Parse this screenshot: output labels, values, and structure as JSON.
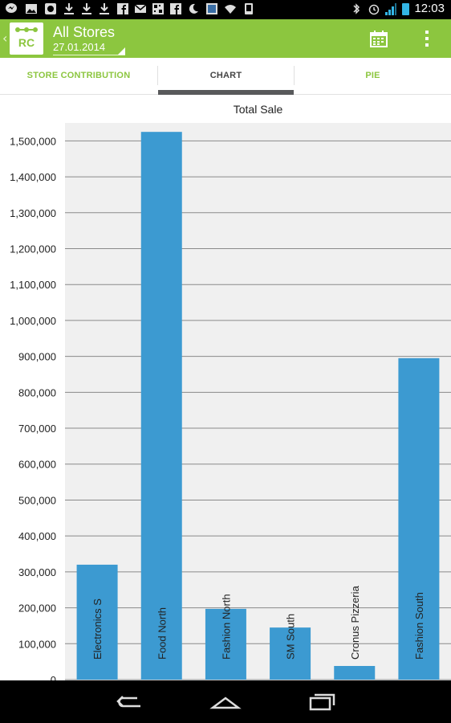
{
  "status_bar": {
    "time": "12:03",
    "left_icons": [
      "messenger-icon",
      "image-icon",
      "app-icon",
      "download-icon",
      "download-icon",
      "download-icon",
      "facebook-icon",
      "gmail-icon",
      "qr-icon",
      "facebook-icon",
      "moon-icon",
      "app-icon",
      "wifi-icon",
      "app-icon"
    ],
    "right_icons": [
      "bluetooth-icon",
      "alarm-icon",
      "signal-icon",
      "battery-icon"
    ],
    "accent_color": "#33b5e5"
  },
  "action_bar": {
    "logo_text": "RC",
    "title": "All Stores",
    "date": "27.01.2014",
    "background_color": "#8cc63f",
    "icons": [
      "calendar-icon",
      "overflow-menu-icon"
    ]
  },
  "tabs": [
    {
      "label": "STORE CONTRIBUTION",
      "selected": false
    },
    {
      "label": "CHART",
      "selected": true
    },
    {
      "label": "PIE",
      "selected": false
    }
  ],
  "chart_data": {
    "type": "bar",
    "title": "Total Sale",
    "categories": [
      "Electronics S",
      "Food North",
      "Fashion North",
      "SM South",
      "Cronus Pizzeria",
      "Fashion South"
    ],
    "values": [
      320000,
      1525000,
      197000,
      145000,
      38000,
      895000
    ],
    "ylim": [
      0,
      1550000
    ],
    "y_ticks": [
      0,
      100000,
      200000,
      300000,
      400000,
      500000,
      600000,
      700000,
      800000,
      900000,
      1000000,
      1100000,
      1200000,
      1300000,
      1400000,
      1500000
    ],
    "y_tick_labels": [
      "0",
      "100,000",
      "200,000",
      "300,000",
      "400,000",
      "500,000",
      "600,000",
      "700,000",
      "800,000",
      "900,000",
      "1,000,000",
      "1,100,000",
      "1,200,000",
      "1,300,000",
      "1,400,000",
      "1,500,000"
    ],
    "grid": true,
    "bar_color": "#3c9ad1",
    "plot_background": "#f0f0f0"
  },
  "nav_bar": {
    "buttons": [
      "back-icon",
      "home-icon",
      "recent-apps-icon"
    ]
  }
}
